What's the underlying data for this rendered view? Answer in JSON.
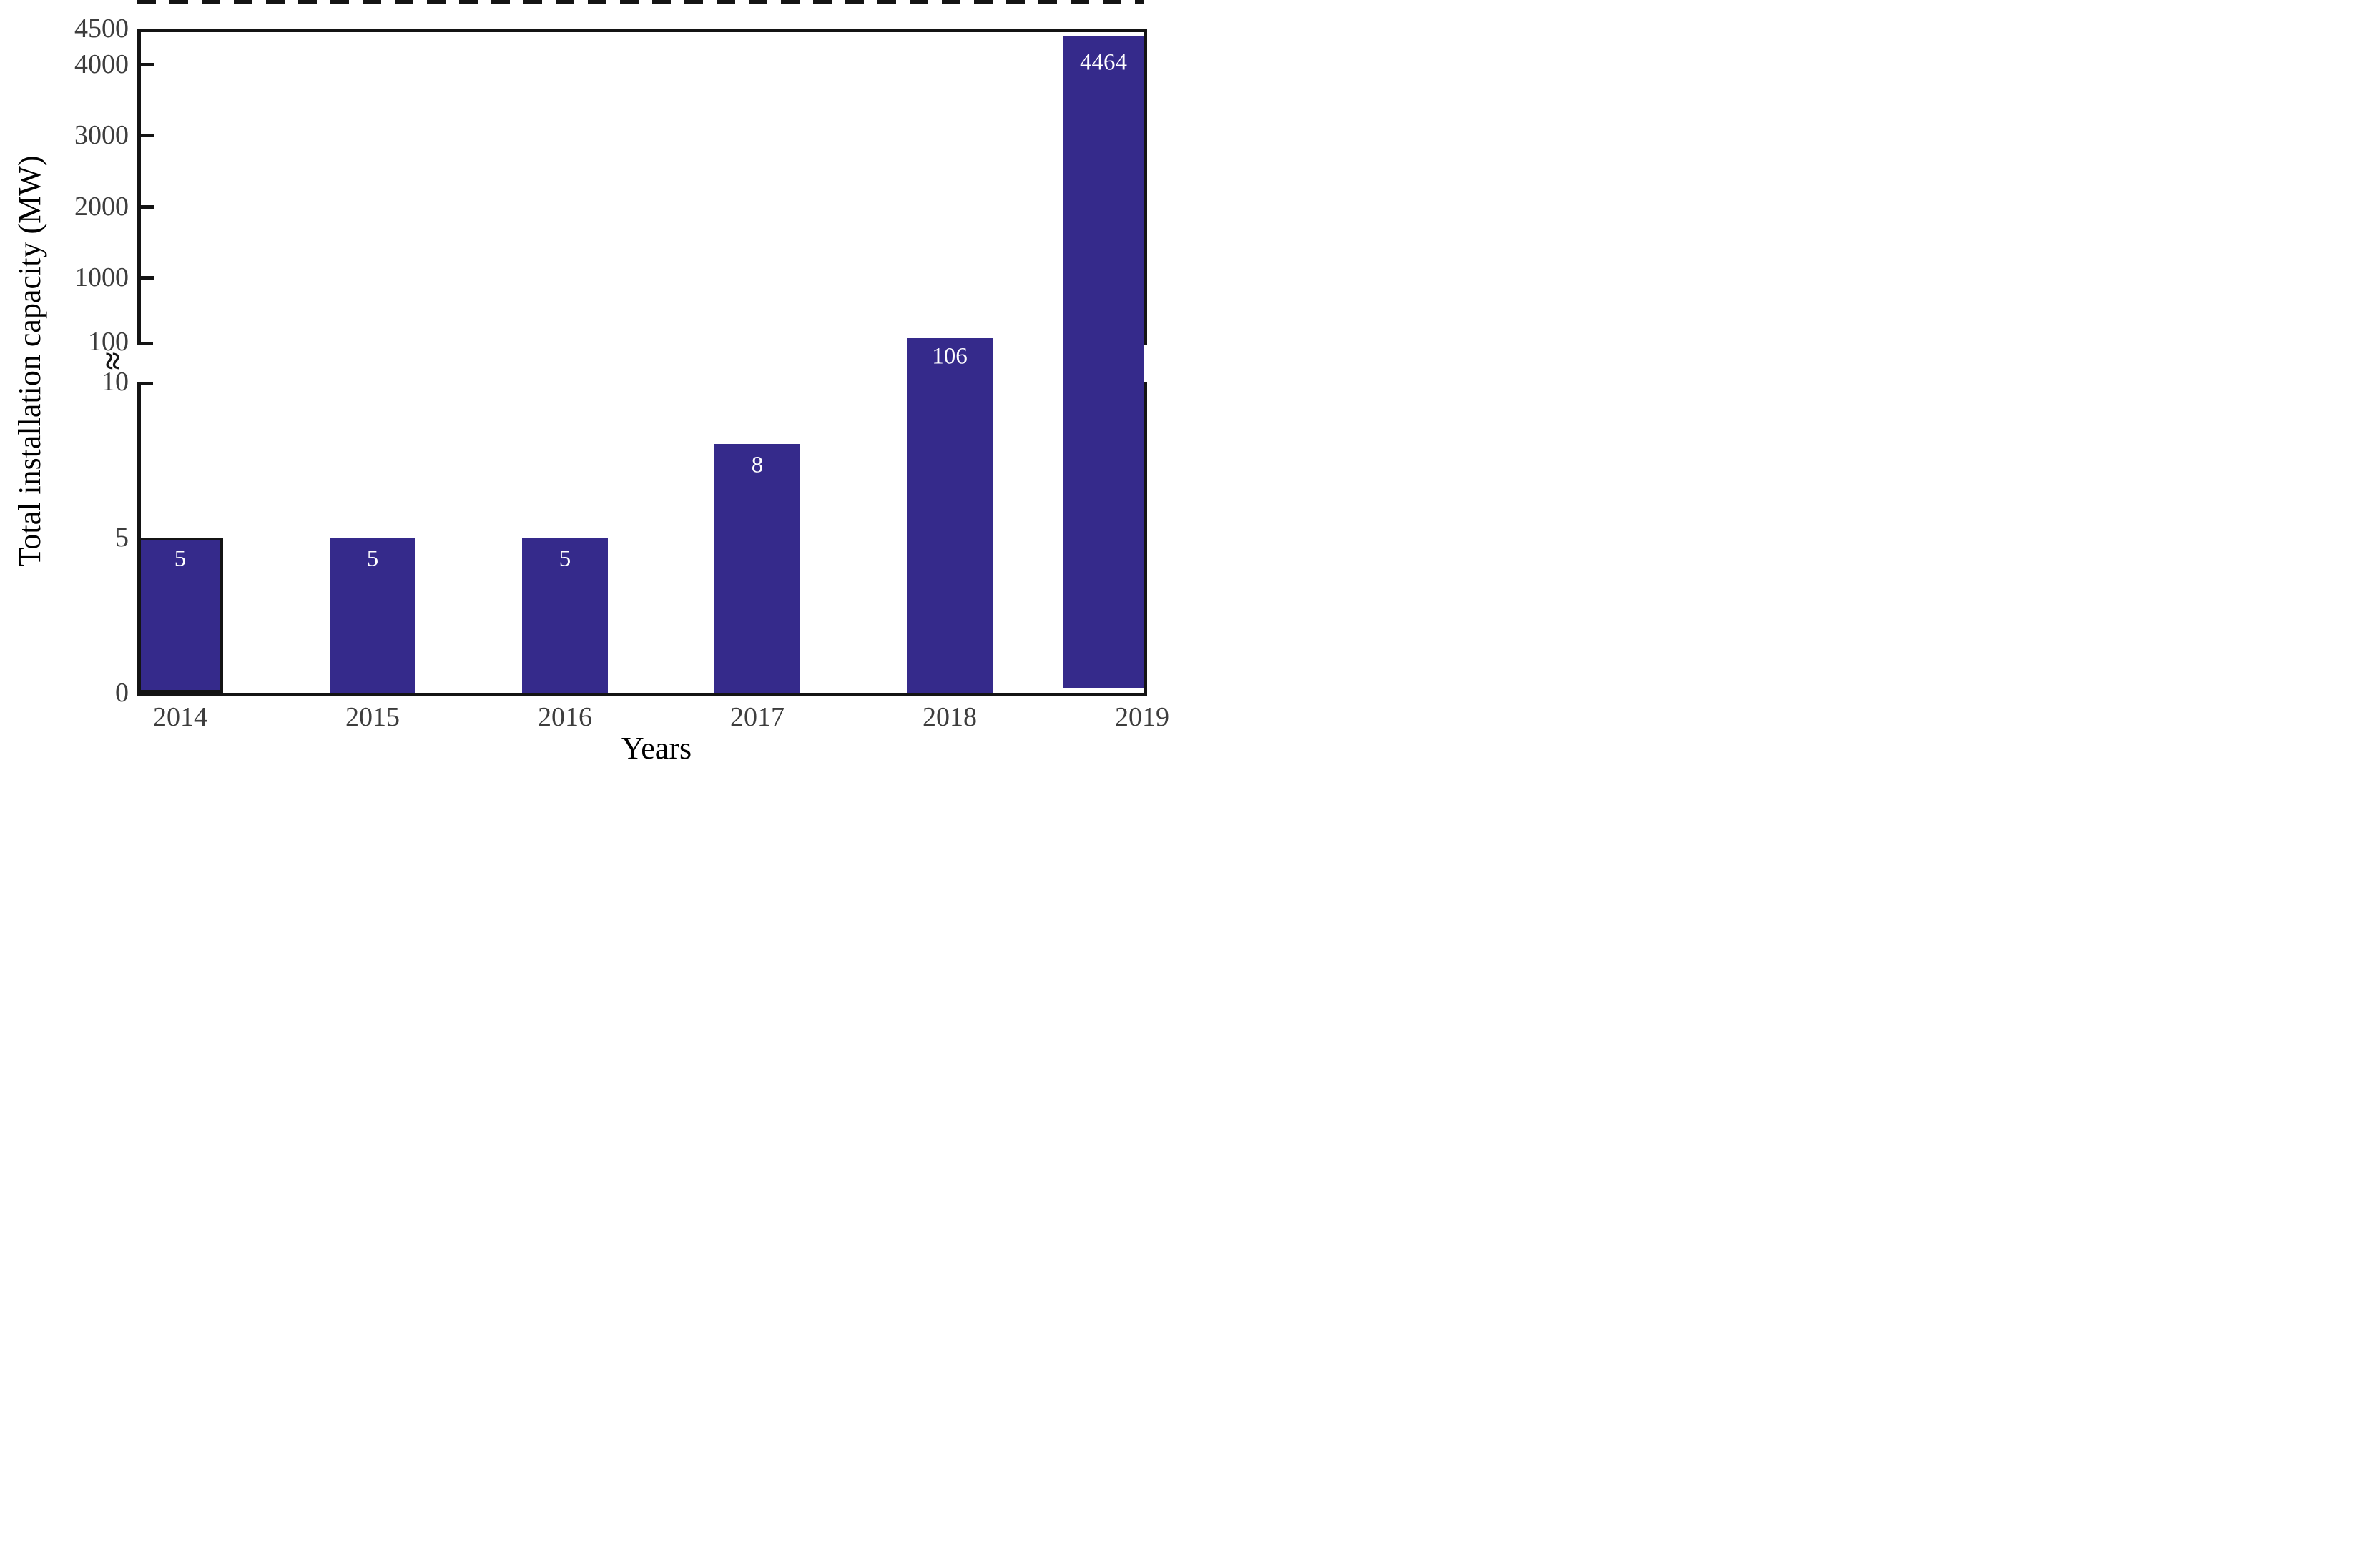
{
  "chart_data": {
    "type": "bar",
    "title": "",
    "xlabel": "Years",
    "ylabel": "Total installation capacity (MW)",
    "categories": [
      "2014",
      "2015",
      "2016",
      "2017",
      "2018",
      "2019"
    ],
    "values": [
      5,
      5,
      5,
      8,
      106,
      4464
    ],
    "bar_value_labels": [
      "5",
      "5",
      "5",
      "8",
      "106",
      "4464"
    ],
    "y_axis": {
      "lower_segment": {
        "min": 0,
        "max": 10,
        "tick_labels": [
          "0",
          "5",
          "10"
        ],
        "tick_values": [
          0,
          5,
          10
        ],
        "scale": "linear"
      },
      "upper_segment": {
        "min": 100,
        "max": 4500,
        "tick_labels": [
          "100",
          "1000",
          "2000",
          "3000",
          "4000",
          "4500"
        ],
        "tick_values": [
          100,
          1000,
          2000,
          3000,
          4000,
          4500
        ],
        "scale": "linear"
      },
      "axis_break_between": [
        10,
        100
      ],
      "break_marker": "≈"
    },
    "dashed_gridlines_at": [
      100,
      10
    ],
    "legend": null,
    "grid": "off except two horizontal dashed lines at break levels",
    "colors": {
      "bar_fill": "#352a8b",
      "bar_outline_2014": "#141414",
      "bar_value_label": "#ffffff",
      "axis_line": "#141414",
      "tick_label": "#3d3d3d",
      "axis_title": "#3d3d3d",
      "background": "#ffffff"
    }
  }
}
